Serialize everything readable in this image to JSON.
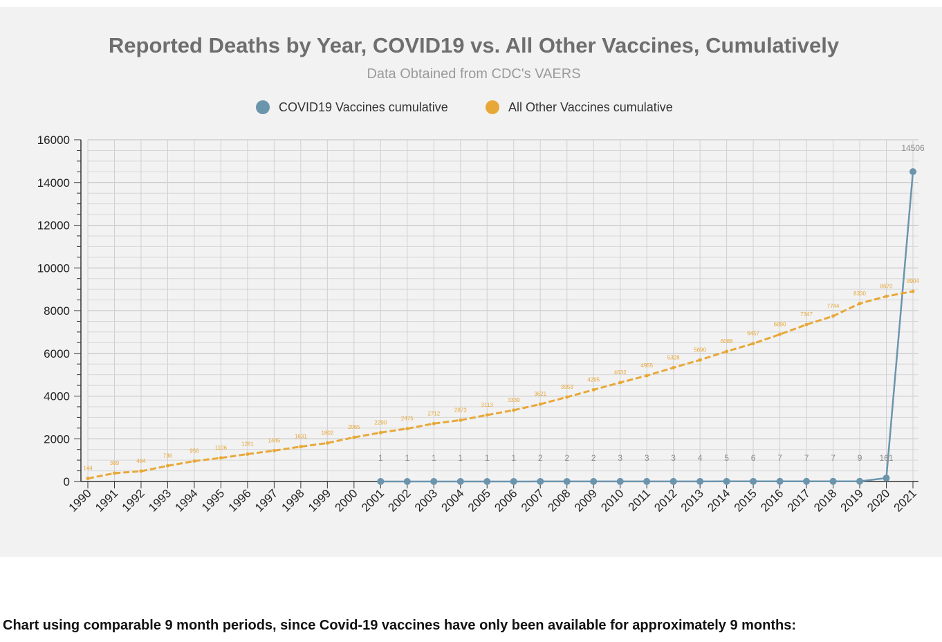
{
  "caption": "Chart using comparable 9 month periods, since Covid-19 vaccines have only been available for approximately 9 months:",
  "colors": {
    "covid": "#6b95ad",
    "other": "#e8a838",
    "panel": "#f2f2f2",
    "grid": "#c9c9c9",
    "title": "#6e6e6e"
  },
  "chart_data": {
    "type": "line",
    "title": "Reported Deaths by Year, COVID19 vs. All Other Vaccines, Cumulatively",
    "subtitle": "Data Obtained from CDC's VAERS",
    "xlabel": "",
    "ylabel": "",
    "ylim": [
      0,
      16000
    ],
    "y_ticks": [
      0,
      2000,
      4000,
      6000,
      8000,
      10000,
      12000,
      14000,
      16000
    ],
    "legend_position": "top-center",
    "grid": true,
    "categories": [
      "1990",
      "1991",
      "1992",
      "1993",
      "1994",
      "1995",
      "1996",
      "1997",
      "1998",
      "1999",
      "2000",
      "2001",
      "2002",
      "2003",
      "2004",
      "2005",
      "2006",
      "2007",
      "2008",
      "2009",
      "2010",
      "2011",
      "2012",
      "2013",
      "2014",
      "2015",
      "2016",
      "2017",
      "2018",
      "2019",
      "2020",
      "2021"
    ],
    "series": [
      {
        "name": "COVID19 Vaccines cumulative",
        "color_key": "covid",
        "values": [
          null,
          null,
          null,
          null,
          null,
          null,
          null,
          null,
          null,
          null,
          null,
          1,
          1,
          1,
          1,
          1,
          1,
          2,
          2,
          2,
          3,
          3,
          3,
          4,
          5,
          6,
          7,
          7,
          7,
          9,
          161,
          14506
        ],
        "labels": [
          "",
          "",
          "",
          "",
          "",
          "",
          "",
          "",
          "",
          "",
          "",
          "1",
          "1",
          "1",
          "1",
          "1",
          "1",
          "2",
          "2",
          "2",
          "3",
          "3",
          "3",
          "4",
          "5",
          "6",
          "7",
          "7",
          "7",
          "9",
          "161",
          "14506"
        ]
      },
      {
        "name": "All Other Vaccines cumulative",
        "color_key": "other",
        "values": [
          144,
          389,
          484,
          736,
          956,
          1106,
          1281,
          1445,
          1631,
          1802,
          2065,
          2290,
          2475,
          2712,
          2873,
          3113,
          3339,
          3621,
          3953,
          4295,
          4632,
          4955,
          5328,
          5690,
          6088,
          6457,
          6890,
          7347,
          7744,
          8330,
          8670,
          8904
        ],
        "labels": [
          "144",
          "389",
          "484",
          "736",
          "956",
          "1106",
          "1281",
          "1445",
          "1631",
          "1802",
          "2065",
          "2290",
          "2475",
          "2712",
          "2873",
          "3113",
          "3339",
          "3621",
          "3953",
          "4295",
          "4632",
          "4955",
          "5328",
          "5690",
          "6088",
          "6457",
          "6890",
          "7347",
          "7744",
          "8330",
          "8670",
          "8904"
        ]
      }
    ]
  }
}
